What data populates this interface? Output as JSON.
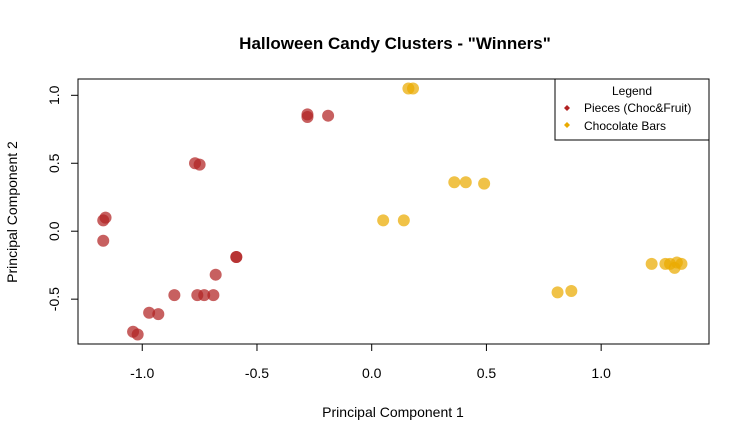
{
  "chart_data": {
    "type": "scatter",
    "title": "Halloween Candy Clusters - \"Winners\"",
    "xlabel": "Principal Component 1",
    "ylabel": "Principal Component 2",
    "xlim": [
      -1.28,
      1.47
    ],
    "ylim": [
      -0.83,
      1.12
    ],
    "xticks": [
      -1.0,
      -0.5,
      0.0,
      0.5,
      1.0
    ],
    "xtick_labels": [
      "-1.0",
      "-0.5",
      "0.0",
      "0.5",
      "1.0"
    ],
    "yticks": [
      -0.5,
      0.0,
      0.5,
      1.0
    ],
    "ytick_labels": [
      "-0.5",
      "0.0",
      "0.5",
      "1.0"
    ],
    "grid": false,
    "legend": {
      "title": "Legend",
      "placement": "top-right"
    },
    "series": [
      {
        "name": "Pieces (Choc&Fruit)",
        "color": "#B22222",
        "points": [
          [
            -1.17,
            0.08
          ],
          [
            -1.16,
            0.1
          ],
          [
            -1.17,
            -0.07
          ],
          [
            -1.04,
            -0.74
          ],
          [
            -1.02,
            -0.76
          ],
          [
            -0.97,
            -0.6
          ],
          [
            -0.93,
            -0.61
          ],
          [
            -0.86,
            -0.47
          ],
          [
            -0.77,
            0.5
          ],
          [
            -0.75,
            0.49
          ],
          [
            -0.76,
            -0.47
          ],
          [
            -0.73,
            -0.47
          ],
          [
            -0.69,
            -0.47
          ],
          [
            -0.68,
            -0.32
          ],
          [
            -0.59,
            -0.19
          ],
          [
            -0.59,
            -0.19
          ],
          [
            -0.28,
            0.84
          ],
          [
            -0.28,
            0.86
          ],
          [
            -0.19,
            0.85
          ]
        ]
      },
      {
        "name": "Chocolate Bars",
        "color": "#EAAA00",
        "points": [
          [
            0.16,
            1.05
          ],
          [
            0.18,
            1.05
          ],
          [
            0.05,
            0.08
          ],
          [
            0.14,
            0.08
          ],
          [
            0.36,
            0.36
          ],
          [
            0.41,
            0.36
          ],
          [
            0.49,
            0.35
          ],
          [
            0.81,
            -0.45
          ],
          [
            0.87,
            -0.44
          ],
          [
            1.22,
            -0.24
          ],
          [
            1.28,
            -0.24
          ],
          [
            1.3,
            -0.24
          ],
          [
            1.32,
            -0.27
          ],
          [
            1.33,
            -0.23
          ],
          [
            1.35,
            -0.24
          ]
        ]
      }
    ]
  }
}
